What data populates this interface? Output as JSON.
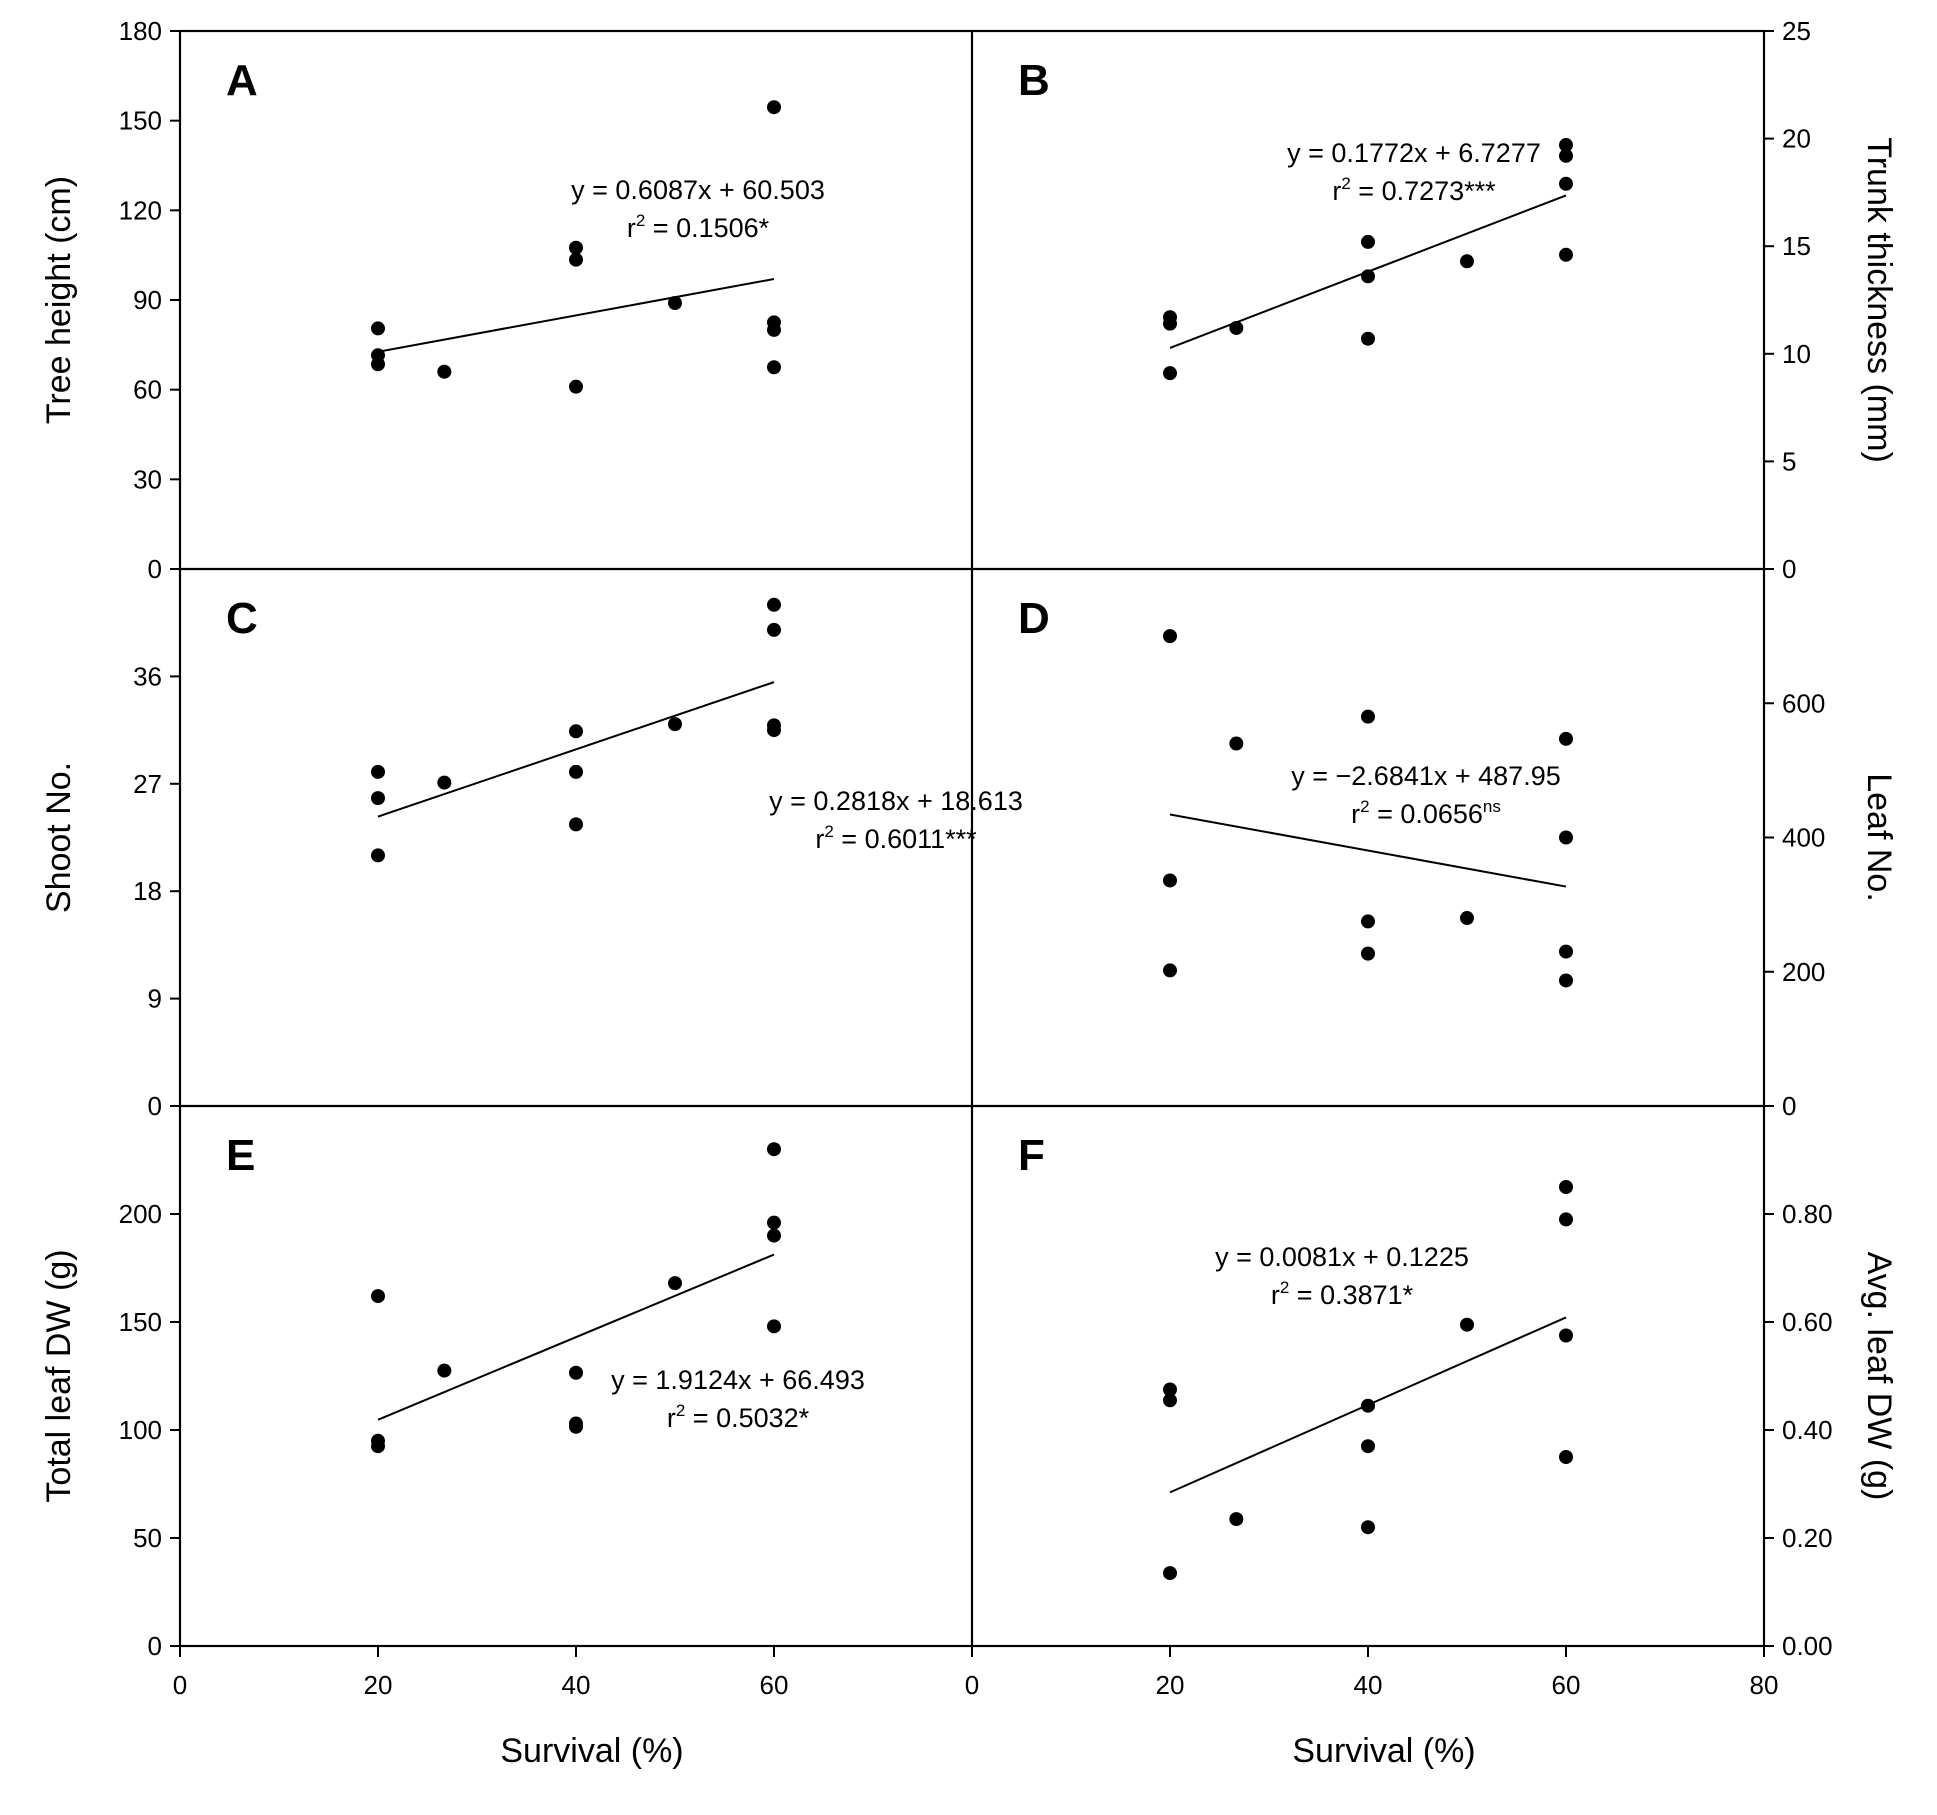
{
  "x_axis": {
    "label": "Survival (%)",
    "left_ticks": [
      "0",
      "20",
      "40",
      "60"
    ],
    "right_ticks": [
      "0",
      "20",
      "40",
      "60",
      "80"
    ]
  },
  "chart_data": [
    {
      "type": "scatter",
      "panel": "A",
      "ylabel": "Tree height (cm)",
      "ylim": [
        0,
        180
      ],
      "xlim": [
        0,
        80
      ],
      "yticks": [
        "0",
        "30",
        "60",
        "90",
        "120",
        "150",
        "180"
      ],
      "equation": "y = 0.6087x + 60.503",
      "r2_prefix": "r",
      "r2_value": " = 0.1506*",
      "fit": {
        "slope": 0.6087,
        "intercept": 60.503,
        "x_range": [
          20,
          60
        ]
      },
      "points": [
        [
          20,
          80.5
        ],
        [
          20,
          71.5
        ],
        [
          20,
          68.5
        ],
        [
          26.7,
          66
        ],
        [
          40,
          107.5
        ],
        [
          40,
          103.5
        ],
        [
          40,
          61
        ],
        [
          50,
          89
        ],
        [
          60,
          154.5
        ],
        [
          60,
          82.5
        ],
        [
          60,
          80
        ],
        [
          60,
          67.5
        ]
      ]
    },
    {
      "type": "scatter",
      "panel": "B",
      "ylabel": "Trunk thickness (mm)",
      "ylim": [
        0,
        25
      ],
      "xlim": [
        0,
        80
      ],
      "yticks": [
        "0",
        "5",
        "10",
        "15",
        "20",
        "25"
      ],
      "equation": "y = 0.1772x + 6.7277",
      "r2_prefix": "r",
      "r2_value": " = 0.7273***",
      "fit": {
        "slope": 0.1772,
        "intercept": 6.7277,
        "x_range": [
          20,
          60
        ]
      },
      "points": [
        [
          20,
          11.7
        ],
        [
          20,
          11.4
        ],
        [
          20,
          9.1
        ],
        [
          26.7,
          11.2
        ],
        [
          40,
          15.2
        ],
        [
          40,
          13.6
        ],
        [
          40,
          10.7
        ],
        [
          50,
          14.3
        ],
        [
          60,
          19.7
        ],
        [
          60,
          19.2
        ],
        [
          60,
          17.9
        ],
        [
          60,
          14.6
        ]
      ]
    },
    {
      "type": "scatter",
      "panel": "C",
      "ylabel": "Shoot No.",
      "ylim": [
        0,
        45
      ],
      "xlim": [
        0,
        80
      ],
      "yticks": [
        "0",
        "9",
        "18",
        "27",
        "36"
      ],
      "equation": "y = 0.2818x + 18.613",
      "r2_prefix": "r",
      "r2_value": " = 0.6011***",
      "fit": {
        "slope": 0.2818,
        "intercept": 18.613,
        "x_range": [
          20,
          60
        ]
      },
      "points": [
        [
          20,
          28
        ],
        [
          20,
          25.8
        ],
        [
          20,
          21
        ],
        [
          26.7,
          27.1
        ],
        [
          40,
          31.4
        ],
        [
          40,
          28
        ],
        [
          40,
          23.6
        ],
        [
          50,
          32
        ],
        [
          60,
          42
        ],
        [
          60,
          39.9
        ],
        [
          60,
          31.9
        ],
        [
          60,
          31.5
        ]
      ]
    },
    {
      "type": "scatter",
      "panel": "D",
      "ylabel": "Leaf No.",
      "ylim": [
        0,
        800
      ],
      "xlim": [
        0,
        80
      ],
      "yticks": [
        "0",
        "200",
        "400",
        "600"
      ],
      "equation": "y = −2.6841x + 487.95",
      "r2_prefix": "r",
      "r2_value": " = 0.0656",
      "r2_suffix": "ns",
      "fit": {
        "slope": -2.6841,
        "intercept": 487.95,
        "x_range": [
          20,
          60
        ]
      },
      "points": [
        [
          20,
          700
        ],
        [
          20,
          336
        ],
        [
          20,
          202
        ],
        [
          26.7,
          540
        ],
        [
          40,
          580
        ],
        [
          40,
          275
        ],
        [
          40,
          227
        ],
        [
          50,
          280
        ],
        [
          60,
          547
        ],
        [
          60,
          400
        ],
        [
          60,
          230
        ],
        [
          60,
          187
        ]
      ]
    },
    {
      "type": "scatter",
      "panel": "E",
      "ylabel": "Total leaf DW (g)",
      "ylim": [
        0,
        250
      ],
      "xlim": [
        0,
        80
      ],
      "yticks": [
        "0",
        "50",
        "100",
        "150",
        "200"
      ],
      "equation": "y = 1.9124x + 66.493",
      "r2_prefix": "r",
      "r2_value": " = 0.5032*",
      "fit": {
        "slope": 1.9124,
        "intercept": 66.493,
        "x_range": [
          20,
          60
        ]
      },
      "points": [
        [
          20,
          162
        ],
        [
          20,
          95
        ],
        [
          20,
          92.5
        ],
        [
          26.7,
          127.5
        ],
        [
          40,
          126.5
        ],
        [
          40,
          103
        ],
        [
          40,
          101.5
        ],
        [
          50,
          168
        ],
        [
          60,
          230
        ],
        [
          60,
          196
        ],
        [
          60,
          190
        ],
        [
          60,
          148
        ]
      ]
    },
    {
      "type": "scatter",
      "panel": "F",
      "ylabel": "Avg. leaf DW (g)",
      "ylim": [
        0,
        1.0
      ],
      "xlim": [
        0,
        80
      ],
      "yticks": [
        "0.00",
        "0.20",
        "0.40",
        "0.60",
        "0.80"
      ],
      "equation": "y = 0.0081x + 0.1225",
      "r2_prefix": "r",
      "r2_value": " = 0.3871*",
      "fit": {
        "slope": 0.0081,
        "intercept": 0.1225,
        "x_range": [
          20,
          60
        ]
      },
      "points": [
        [
          20,
          0.475
        ],
        [
          20,
          0.455
        ],
        [
          20,
          0.135
        ],
        [
          26.7,
          0.235
        ],
        [
          40,
          0.445
        ],
        [
          40,
          0.37
        ],
        [
          40,
          0.22
        ],
        [
          50,
          0.595
        ],
        [
          60,
          0.85
        ],
        [
          60,
          0.79
        ],
        [
          60,
          0.575
        ],
        [
          60,
          0.35
        ]
      ]
    }
  ]
}
